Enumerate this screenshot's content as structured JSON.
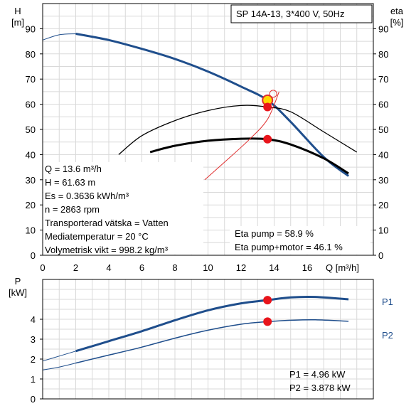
{
  "title": "SP 14A-13, 3*400 V, 50Hz",
  "chart_data": [
    {
      "type": "line",
      "y_label_left": "H",
      "y_unit_left": "[m]",
      "y_label_right": "eta",
      "y_unit_right": "[%]",
      "x_label": "Q [m³/h]",
      "xlim": [
        0,
        20
      ],
      "ylim": [
        0,
        100
      ],
      "x_ticks": [
        0,
        2,
        4,
        6,
        8,
        10,
        12,
        14,
        16
      ],
      "y_ticks": [
        0,
        10,
        20,
        30,
        40,
        50,
        60,
        70,
        80,
        90
      ],
      "grid": true,
      "series": [
        {
          "key": "H",
          "color": "#1f4e8c",
          "points": [
            [
              0,
              85.5
            ],
            [
              1,
              87.6
            ],
            [
              2,
              88.0
            ],
            [
              4,
              85.5
            ],
            [
              6,
              82.0
            ],
            [
              8,
              78.0
            ],
            [
              10,
              73.0
            ],
            [
              12,
              67.0
            ],
            [
              13.6,
              61.6
            ],
            [
              15,
              53.0
            ],
            [
              17,
              39.0
            ],
            [
              18.5,
              31.5
            ]
          ]
        },
        {
          "key": "EtaPump",
          "color": "#000000",
          "points": [
            [
              4.6,
              40
            ],
            [
              6,
              47.5
            ],
            [
              8,
              53.5
            ],
            [
              10,
              57.5
            ],
            [
              12,
              59.5
            ],
            [
              13.6,
              58.9
            ],
            [
              15,
              57.0
            ],
            [
              17,
              49.0
            ],
            [
              19,
              41.0
            ]
          ]
        },
        {
          "key": "EtaPumpMotor",
          "color": "#000000",
          "points": [
            [
              6.5,
              41
            ],
            [
              8,
              43.5
            ],
            [
              10,
              45.5
            ],
            [
              12,
              46.3
            ],
            [
              13.6,
              46.1
            ],
            [
              15,
              44.0
            ],
            [
              17,
              38.5
            ],
            [
              18.5,
              32.5
            ]
          ]
        },
        {
          "key": "SystemCurve",
          "color": "#e03030",
          "points": [
            [
              9.8,
              30
            ],
            [
              11,
              37
            ],
            [
              12.5,
              46
            ],
            [
              13.6,
              54
            ],
            [
              14.3,
              65
            ]
          ]
        }
      ],
      "duty_point": {
        "Q": 13.6,
        "H": 61.63,
        "eta_pump": 58.9,
        "eta_total": 46.1
      },
      "info_lines": [
        "Q = 13.6 m³/h",
        "H = 61.63 m",
        "Es = 0.3636 kWh/m³",
        "n = 2863 rpm",
        "Transporterad vätska = Vatten",
        "Mediatemperatur = 20 °C",
        "Volymetrisk vikt = 998.2 kg/m³"
      ],
      "eta_pump_label": "Eta pump = 58.9 %",
      "eta_total_label": "Eta pump+motor = 46.1 %"
    },
    {
      "type": "line",
      "y_label": "P",
      "y_unit": "[kW]",
      "xlim": [
        0,
        20
      ],
      "ylim": [
        0,
        6
      ],
      "y_ticks": [
        0,
        1,
        2,
        3,
        4
      ],
      "grid": true,
      "series": [
        {
          "name": "P1",
          "color": "#1f4e8c",
          "points": [
            [
              0,
              1.9
            ],
            [
              1,
              2.15
            ],
            [
              2,
              2.4
            ],
            [
              4,
              2.9
            ],
            [
              6,
              3.4
            ],
            [
              8,
              3.95
            ],
            [
              10,
              4.45
            ],
            [
              12,
              4.8
            ],
            [
              13.6,
              4.96
            ],
            [
              15,
              5.1
            ],
            [
              16.5,
              5.12
            ],
            [
              18.5,
              5.0
            ]
          ]
        },
        {
          "name": "P2",
          "color": "#1f4e8c",
          "points": [
            [
              0,
              1.45
            ],
            [
              1,
              1.6
            ],
            [
              2,
              1.8
            ],
            [
              4,
              2.2
            ],
            [
              6,
              2.6
            ],
            [
              8,
              3.05
            ],
            [
              10,
              3.45
            ],
            [
              12,
              3.75
            ],
            [
              13.6,
              3.878
            ],
            [
              15,
              3.95
            ],
            [
              16.5,
              3.97
            ],
            [
              18.5,
              3.9
            ]
          ]
        }
      ],
      "P1_label": "P1 = 4.96 kW",
      "P2_label": "P2 = 3.878 kW"
    }
  ]
}
